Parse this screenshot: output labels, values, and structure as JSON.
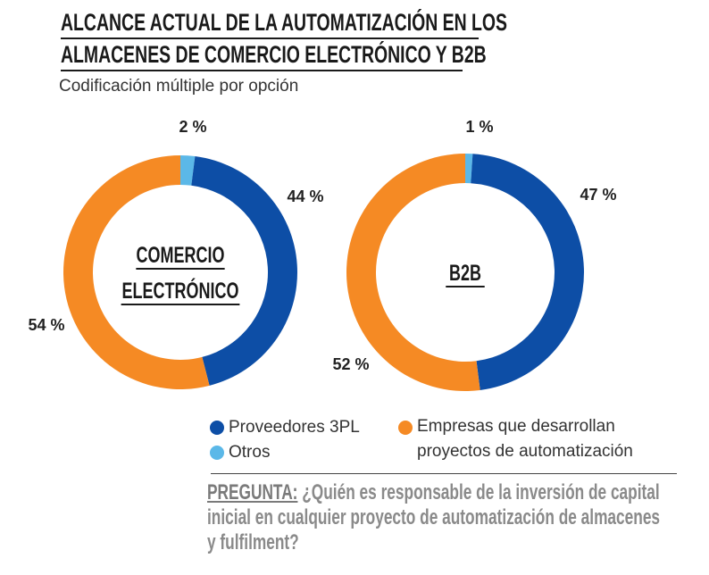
{
  "chart_data": [
    {
      "type": "pie",
      "donut": true,
      "center_label": [
        "COMERCIO",
        "ELECTRÓNICO"
      ],
      "categories": [
        "Otros",
        "Proveedores 3PL",
        "Empresas que desarrollan proyectos de automatización"
      ],
      "values": [
        2,
        44,
        54
      ],
      "labels": [
        "2 %",
        "44 %",
        "54 %"
      ]
    },
    {
      "type": "pie",
      "donut": true,
      "center_label": [
        "B2B"
      ],
      "categories": [
        "Otros",
        "Proveedores 3PL",
        "Empresas que desarrollan proyectos de automatización"
      ],
      "values": [
        1,
        47,
        52
      ],
      "labels": [
        "1 %",
        "47 %",
        "52 %"
      ]
    }
  ],
  "title_lines": [
    "ALCANCE ACTUAL DE LA AUTOMATIZACIÓN EN LOS",
    "ALMACENES DE COMERCIO ELECTRÓNICO Y B2B"
  ],
  "subtitle": "Codificación múltiple por opción",
  "legend": [
    {
      "label": "Proveedores 3PL",
      "color": "#0d4ea6"
    },
    {
      "label": "Otros",
      "color": "#5bb8e8"
    },
    {
      "label": "Empresas que desarrollan",
      "label2": "proyectos de automatización",
      "color": "#f58a24"
    }
  ],
  "colors": {
    "Otros": "#5bb8e8",
    "Proveedores 3PL": "#0d4ea6",
    "Empresas": "#f58a24"
  },
  "question": {
    "label": "PREGUNTA:",
    "line1": " ¿Quién es responsable de la inversión de capital",
    "line2": "inicial en cualquier proyecto de automatización de almacenes",
    "line3": "y fulfilment?"
  }
}
